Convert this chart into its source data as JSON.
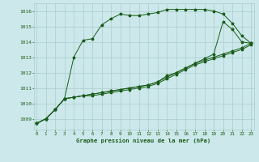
{
  "title": "Graphe pression niveau de la mer (hPa)",
  "background_color": "#cce8ea",
  "grid_color": "#aacccc",
  "line_color": "#1a5c1a",
  "x_ticks": [
    0,
    1,
    2,
    3,
    4,
    5,
    6,
    7,
    8,
    9,
    10,
    11,
    12,
    13,
    14,
    15,
    16,
    17,
    18,
    19,
    20,
    21,
    22,
    23
  ],
  "ylim": [
    1008.3,
    1016.5
  ],
  "xlim": [
    -0.3,
    23.3
  ],
  "yticks": [
    1009,
    1010,
    1011,
    1012,
    1013,
    1014,
    1015,
    1016
  ],
  "series": [
    [
      1008.7,
      1009.0,
      1009.6,
      1010.3,
      1013.0,
      1014.1,
      1014.2,
      1015.1,
      1015.5,
      1015.8,
      1015.7,
      1015.7,
      1015.8,
      1015.9,
      1016.1,
      1016.1,
      1016.1,
      1016.1,
      1016.1,
      1016.0,
      1015.8,
      1015.2,
      1014.4,
      1013.9
    ],
    [
      1008.7,
      1009.0,
      1009.6,
      1010.3,
      1010.4,
      1010.5,
      1010.6,
      1010.7,
      1010.8,
      1010.9,
      1011.0,
      1011.1,
      1011.2,
      1011.4,
      1011.8,
      1012.0,
      1012.3,
      1012.6,
      1012.9,
      1013.2,
      1015.3,
      1014.8,
      1014.0,
      1013.9
    ],
    [
      1008.7,
      1009.0,
      1009.6,
      1010.3,
      1010.4,
      1010.5,
      1010.6,
      1010.7,
      1010.8,
      1010.9,
      1011.0,
      1011.1,
      1011.2,
      1011.4,
      1011.7,
      1012.0,
      1012.3,
      1012.6,
      1012.8,
      1013.0,
      1013.2,
      1013.4,
      1013.6,
      1013.9
    ],
    [
      1008.7,
      1009.0,
      1009.6,
      1010.3,
      1010.4,
      1010.5,
      1010.5,
      1010.6,
      1010.7,
      1010.8,
      1010.9,
      1011.0,
      1011.1,
      1011.3,
      1011.6,
      1011.9,
      1012.2,
      1012.5,
      1012.7,
      1012.9,
      1013.1,
      1013.3,
      1013.5,
      1013.8
    ]
  ]
}
